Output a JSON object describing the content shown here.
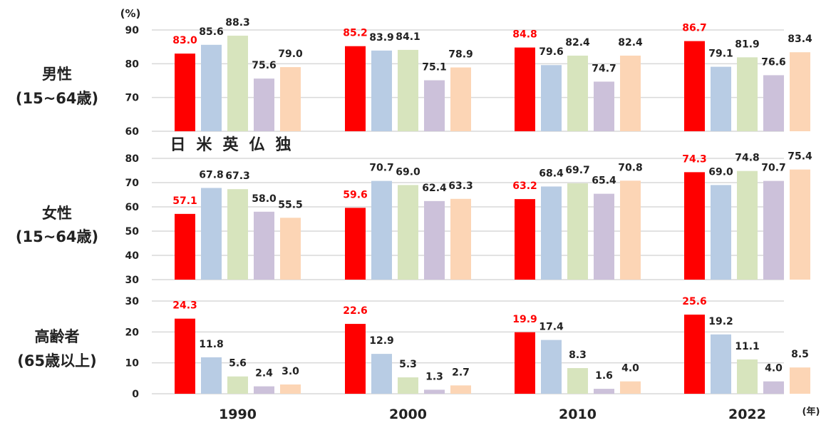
{
  "chart_data": [
    {
      "type": "bar",
      "row_label": [
        "男性",
        "(15~64歳)"
      ],
      "unit_label": "(%)",
      "ylim": [
        60,
        90
      ],
      "yticks": [
        60,
        70,
        80,
        90
      ],
      "categories": [
        "1990",
        "2000",
        "2010",
        "2022"
      ],
      "series": [
        {
          "name": "日",
          "color": "#ff0000",
          "values": [
            83.0,
            85.2,
            84.8,
            86.7
          ]
        },
        {
          "name": "米",
          "color": "#b8cce4",
          "values": [
            85.6,
            83.9,
            79.6,
            79.1
          ]
        },
        {
          "name": "英",
          "color": "#d7e4bd",
          "values": [
            88.3,
            84.1,
            82.4,
            81.9
          ]
        },
        {
          "name": "仏",
          "color": "#ccc1da",
          "values": [
            75.6,
            75.1,
            74.7,
            76.6
          ]
        },
        {
          "name": "独",
          "color": "#fcd5b5",
          "values": [
            79.0,
            78.9,
            82.4,
            83.4
          ]
        }
      ],
      "legend_placement": "below bars of first group",
      "grid": true
    },
    {
      "type": "bar",
      "row_label": [
        "女性",
        "(15~64歳)"
      ],
      "ylim": [
        30,
        80
      ],
      "yticks": [
        30,
        40,
        50,
        60,
        70,
        80
      ],
      "categories": [
        "1990",
        "2000",
        "2010",
        "2022"
      ],
      "series": [
        {
          "name": "日",
          "color": "#ff0000",
          "values": [
            57.1,
            59.6,
            63.2,
            74.3
          ]
        },
        {
          "name": "米",
          "color": "#b8cce4",
          "values": [
            67.8,
            70.7,
            68.4,
            69.0
          ]
        },
        {
          "name": "英",
          "color": "#d7e4bd",
          "values": [
            67.3,
            69.0,
            69.7,
            74.8
          ]
        },
        {
          "name": "仏",
          "color": "#ccc1da",
          "values": [
            58.0,
            62.4,
            65.4,
            70.7
          ]
        },
        {
          "name": "独",
          "color": "#fcd5b5",
          "values": [
            55.5,
            63.3,
            70.8,
            75.4
          ]
        }
      ],
      "grid": true
    },
    {
      "type": "bar",
      "row_label": [
        "高齢者",
        "(65歳以上)"
      ],
      "ylim": [
        0,
        30
      ],
      "yticks": [
        0,
        10,
        20,
        30
      ],
      "categories": [
        "1990",
        "2000",
        "2010",
        "2022"
      ],
      "series": [
        {
          "name": "日",
          "color": "#ff0000",
          "values": [
            24.3,
            22.6,
            19.9,
            25.6
          ]
        },
        {
          "name": "米",
          "color": "#b8cce4",
          "values": [
            11.8,
            12.9,
            17.4,
            19.2
          ]
        },
        {
          "name": "英",
          "color": "#d7e4bd",
          "values": [
            5.6,
            5.3,
            8.3,
            11.1
          ]
        },
        {
          "name": "仏",
          "color": "#ccc1da",
          "values": [
            2.4,
            1.3,
            1.6,
            4.0
          ]
        },
        {
          "name": "独",
          "color": "#fcd5b5",
          "values": [
            3.0,
            2.7,
            4.0,
            8.5
          ]
        }
      ],
      "grid": true
    }
  ],
  "xaxis_unit": "(年)"
}
